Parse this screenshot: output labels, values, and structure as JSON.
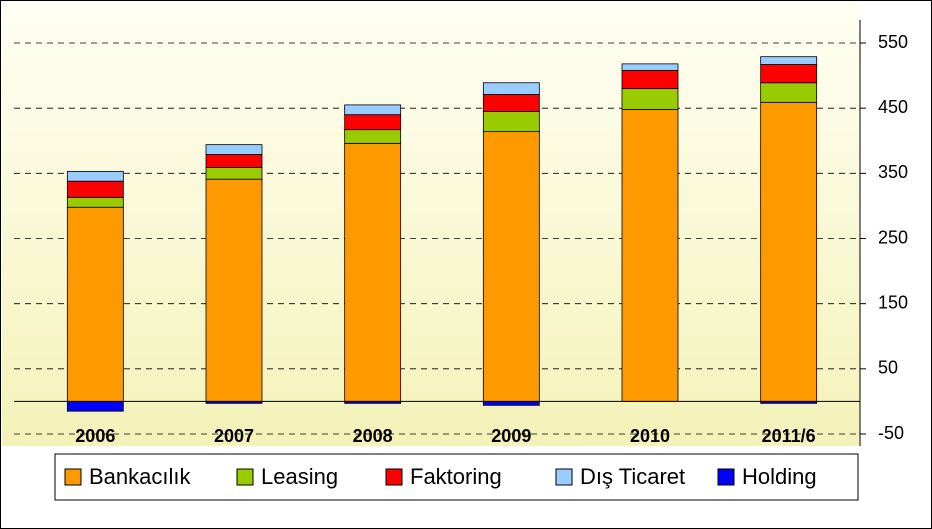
{
  "chart_data": {
    "type": "stacked_bar",
    "categories": [
      "2006",
      "2007",
      "2008",
      "2009",
      "2010",
      "2011/6"
    ],
    "series": [
      {
        "name": "Bankacılık",
        "color": "#ff9900",
        "values": [
          298,
          341,
          396,
          414,
          448,
          459
        ]
      },
      {
        "name": "Leasing",
        "color": "#99cc00",
        "values": [
          15,
          18,
          21,
          31,
          32,
          30
        ]
      },
      {
        "name": "Faktoring",
        "color": "#ff0000",
        "values": [
          25,
          20,
          23,
          26,
          28,
          28
        ]
      },
      {
        "name": "Dış Ticaret",
        "color": "#99ccff",
        "values": [
          15,
          15,
          15,
          18,
          10,
          12
        ]
      },
      {
        "name": "Holding",
        "color": "#0000ff",
        "values": [
          -15,
          -3,
          -3,
          -6,
          0,
          -3
        ]
      }
    ],
    "ylim": [
      -50,
      550
    ],
    "yticks": [
      -50,
      50,
      150,
      250,
      350,
      450,
      550
    ],
    "grid": true,
    "legend": "bottom"
  }
}
